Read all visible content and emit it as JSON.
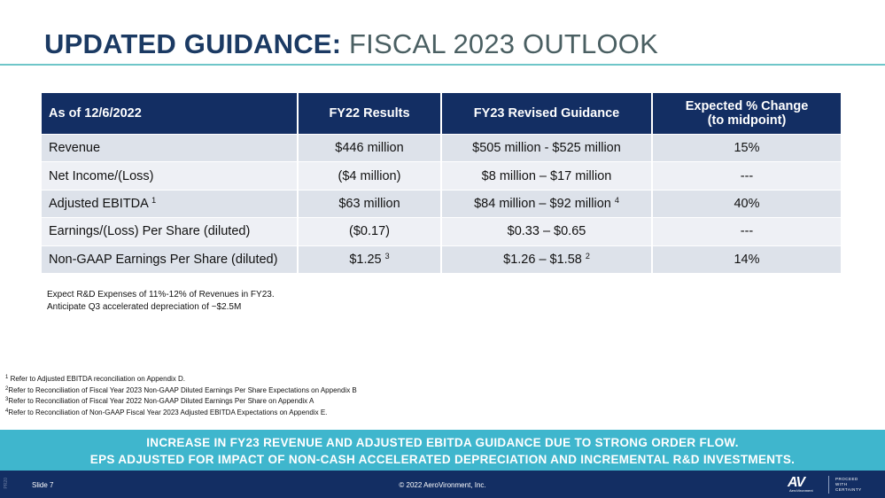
{
  "title": {
    "bold": "UPDATED GUIDANCE:",
    "light": "FISCAL 2023 OUTLOOK"
  },
  "table": {
    "headers": {
      "col0": "As of 12/6/2022",
      "col1": "FY22 Results",
      "col2": "FY23 Revised Guidance",
      "col3_line1": "Expected % Change",
      "col3_line2": "(to midpoint)"
    },
    "rows": [
      {
        "label": "Revenue",
        "fy22": "$446 million",
        "fy23": "$505 million - $525 million",
        "change": "15%"
      },
      {
        "label": "Net Income/(Loss)",
        "fy22": "($4 million)",
        "fy23": "$8 million – $17 million",
        "change": "---"
      },
      {
        "label": "Adjusted EBITDA",
        "label_sup": "1",
        "fy22": "$63 million",
        "fy23": "$84 million – $92 million",
        "fy23_sup": "4",
        "change": "40%"
      },
      {
        "label": "Earnings/(Loss) Per Share (diluted)",
        "fy22": "($0.17)",
        "fy23": "$0.33 – $0.65",
        "change": "---"
      },
      {
        "label": "Non-GAAP Earnings Per Share (diluted)",
        "fy22": "$1.25",
        "fy22_sup": "3",
        "fy23": "$1.26 – $1.58",
        "fy23_sup": "2",
        "change": "14%"
      }
    ]
  },
  "notes": [
    "Expect R&D Expenses of 11%-12% of Revenues in FY23.",
    "Anticipate Q3 accelerated depreciation of ~$2.5M"
  ],
  "footnotes": [
    {
      "num": "1",
      "text": "Refer to Adjusted EBITDA reconciliation on Appendix D."
    },
    {
      "num": "2",
      "text": "Refer to Reconciliation of Fiscal Year 2023 Non-GAAP Diluted Earnings Per Share Expectations on Appendix B"
    },
    {
      "num": "3",
      "text": "Refer to Reconciliation of Fiscal Year 2022 Non-GAAP Diluted Earnings Per Share on Appendix A"
    },
    {
      "num": "4",
      "text": "Refer to Reconciliation of Non-GAAP Fiscal Year 2023 Adjusted EBITDA Expectations on Appendix E."
    }
  ],
  "banner": {
    "line1": "INCREASE IN FY23 REVENUE AND ADJUSTED EBITDA GUIDANCE DUE TO STRONG ORDER FLOW.",
    "line2": "EPS ADJUSTED FOR IMPACT OF NON-CASH ACCELERATED DEPRECIATION AND INCREMENTAL R&D INVESTMENTS."
  },
  "footer": {
    "tag": "PR20",
    "slide": "Slide 7",
    "copyright": "© 2022 AeroVironment, Inc.",
    "logo_mark": "AV",
    "logo_sub": "AeroVironment",
    "logo_tag": [
      "PROCEED",
      "WITH",
      "CERTAINTY"
    ]
  },
  "colors": {
    "navy": "#132e63",
    "teal_banner": "#3fb6cd",
    "title_rule": "#6fc6c9",
    "row_dark": "#dde2ea",
    "row_light": "#eef0f5"
  }
}
